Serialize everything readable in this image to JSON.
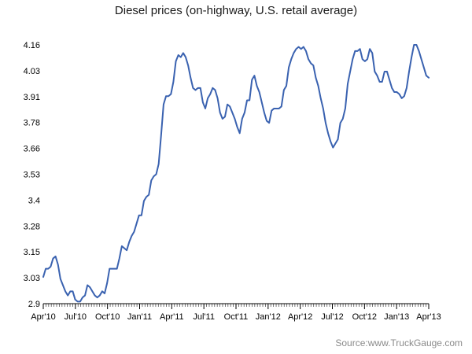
{
  "chart_data": {
    "type": "line",
    "title": "Diesel prices (on-highway, U.S. retail average)",
    "xlabel": "",
    "ylabel": "",
    "x_tick_labels": [
      "Apr'10",
      "Jul'10",
      "Oct'10",
      "Jan'11",
      "Apr'11",
      "Jul'11",
      "Oct'11",
      "Jan'12",
      "Apr'12",
      "Jul'12",
      "Oct'12",
      "Jan'13",
      "Apr'13"
    ],
    "y_tick_labels": [
      "2.9",
      "3.03",
      "3.15",
      "3.28",
      "3.4",
      "3.53",
      "3.66",
      "3.78",
      "3.91",
      "4.03",
      "4.16"
    ],
    "x_range": [
      "Apr'10",
      "Apr'13"
    ],
    "ylim": [
      2.9,
      4.16
    ],
    "grid": false,
    "legend": "none",
    "line_color": "#3a62b0",
    "series": [
      {
        "values": [
          3.03,
          3.07,
          3.07,
          3.08,
          3.12,
          3.13,
          3.09,
          3.02,
          2.99,
          2.96,
          2.94,
          2.96,
          2.96,
          2.92,
          2.91,
          2.91,
          2.93,
          2.94,
          2.99,
          2.98,
          2.96,
          2.94,
          2.93,
          2.94,
          2.96,
          2.95,
          3.0,
          3.07,
          3.07,
          3.07,
          3.07,
          3.12,
          3.18,
          3.17,
          3.16,
          3.2,
          3.23,
          3.25,
          3.29,
          3.33,
          3.33,
          3.4,
          3.42,
          3.43,
          3.5,
          3.52,
          3.53,
          3.58,
          3.72,
          3.87,
          3.91,
          3.91,
          3.92,
          3.98,
          4.08,
          4.11,
          4.1,
          4.12,
          4.1,
          4.06,
          4.0,
          3.95,
          3.94,
          3.95,
          3.95,
          3.88,
          3.85,
          3.9,
          3.92,
          3.95,
          3.94,
          3.9,
          3.83,
          3.8,
          3.81,
          3.87,
          3.86,
          3.83,
          3.8,
          3.76,
          3.73,
          3.8,
          3.83,
          3.89,
          3.89,
          3.99,
          4.01,
          3.96,
          3.93,
          3.88,
          3.83,
          3.79,
          3.78,
          3.84,
          3.85,
          3.85,
          3.85,
          3.86,
          3.94,
          3.96,
          4.05,
          4.09,
          4.12,
          4.14,
          4.15,
          4.14,
          4.15,
          4.13,
          4.09,
          4.07,
          4.06,
          4.0,
          3.96,
          3.9,
          3.85,
          3.78,
          3.73,
          3.69,
          3.66,
          3.68,
          3.7,
          3.78,
          3.8,
          3.85,
          3.97,
          4.03,
          4.09,
          4.13,
          4.13,
          4.14,
          4.09,
          4.08,
          4.09,
          4.14,
          4.12,
          4.03,
          4.01,
          3.98,
          3.98,
          4.03,
          4.03,
          3.99,
          3.95,
          3.93,
          3.93,
          3.92,
          3.9,
          3.91,
          3.95,
          4.03,
          4.1,
          4.16,
          4.16,
          4.13,
          4.09,
          4.05,
          4.01,
          4.0
        ]
      }
    ]
  },
  "source": "Source:www.TruckGauge.com"
}
